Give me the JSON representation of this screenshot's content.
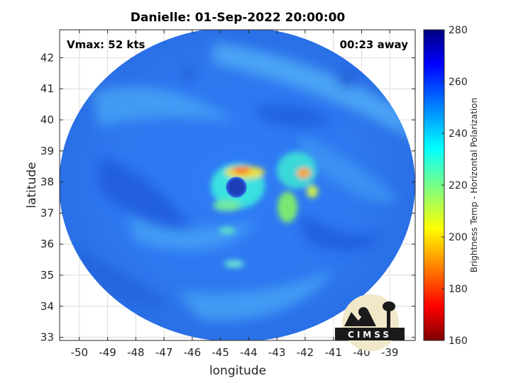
{
  "chart_data": {
    "type": "heatmap",
    "title": "Danielle: 01-Sep-2022 20:00:00",
    "xlabel": "longitude",
    "ylabel": "latitude",
    "xlim": [
      -50.7,
      -38.1
    ],
    "ylim": [
      32.9,
      42.9
    ],
    "x_ticks": [
      -50,
      -49,
      -48,
      -47,
      -46,
      -45,
      -44,
      -43,
      -42,
      -41,
      -40,
      -39
    ],
    "y_ticks": [
      33,
      34,
      35,
      36,
      37,
      38,
      39,
      40,
      41,
      42
    ],
    "grid": true,
    "colorbar": {
      "label": "Brightness Temp - Horizontal Polarization",
      "min": 160,
      "max": 280,
      "ticks": [
        160,
        180,
        200,
        220,
        240,
        260,
        280
      ],
      "colormap": "jet"
    },
    "annotations": {
      "top_left": "Vmax: 52 kts",
      "top_right": "00:23 away"
    },
    "field": {
      "background_value": 250,
      "swath_center": [
        -44.5,
        37.9
      ],
      "features": [
        {
          "type": "eye",
          "lon": -44.3,
          "lat": 37.9,
          "value": 262
        },
        {
          "type": "eyewall",
          "lon": -44.3,
          "lat": 37.9,
          "value": 215
        },
        {
          "type": "warm_spot",
          "lon": -44.6,
          "lat": 38.35,
          "value": 195
        },
        {
          "type": "warm_spot",
          "lon": -42.1,
          "lat": 38.3,
          "value": 200
        },
        {
          "type": "warm_spot",
          "lon": -42.5,
          "lat": 37.2,
          "value": 215
        },
        {
          "type": "warm_spot",
          "lon": -41.9,
          "lat": 37.8,
          "value": 218
        }
      ]
    },
    "logo": {
      "text": "CIMSS"
    }
  }
}
